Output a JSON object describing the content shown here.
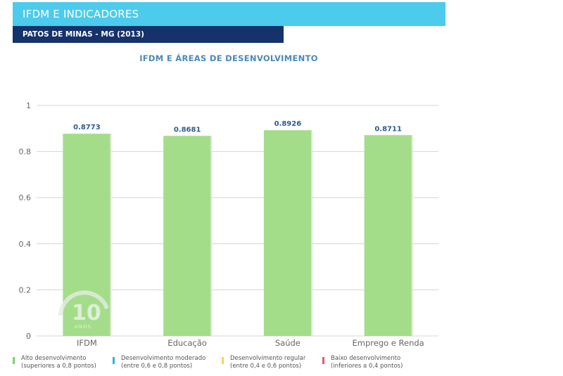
{
  "header": {
    "title": "IFDM E INDICADORES"
  },
  "subheader": {
    "location": "PATOS DE MINAS - MG (2013)"
  },
  "colors": {
    "header_bg": "#4ccbec",
    "subheader_bg": "#16326b",
    "title_text": "#4a89b9",
    "bar": "#a4dd8a",
    "value_label": "#2c5a93",
    "axis_text": "#666666",
    "grid": "#d4d4d4"
  },
  "chart_data": {
    "type": "bar",
    "title": "IFDM E ÁREAS DE DESENVOLVIMENTO",
    "categories": [
      "IFDM",
      "Educação",
      "Saúde",
      "Emprego e Renda"
    ],
    "values": [
      0.8773,
      0.8681,
      0.8926,
      0.8711
    ],
    "value_labels": [
      "0.8773",
      "0.8681",
      "0.8926",
      "0.8711"
    ],
    "ylim": [
      0,
      1
    ],
    "yticks": [
      "0",
      "0.2",
      "0.4",
      "0.6",
      "0.8",
      "1"
    ],
    "ytick_values": [
      0,
      0.2,
      0.4,
      0.6,
      0.8,
      1
    ],
    "grid": true,
    "legend_position": "bottom",
    "legend": [
      {
        "line1": "Alto desenvolvimento",
        "line2": "(superiores a 0,8 pontos)",
        "color": "#7bd36a"
      },
      {
        "line1": "Desenvolvimento moderado",
        "line2": "(entre 0,6 e 0,8 pontos)",
        "color": "#29b7e3"
      },
      {
        "line1": "Desenvolvimento regular",
        "line2": "(entre 0,4 e 0,6 pontos)",
        "color": "#f3d35e"
      },
      {
        "line1": "Baixo desenvolvimento",
        "line2": "(inferiores a 0,4 pontos)",
        "color": "#e95a5a"
      }
    ]
  },
  "watermark": {
    "number": "10",
    "word": "ANOS"
  }
}
